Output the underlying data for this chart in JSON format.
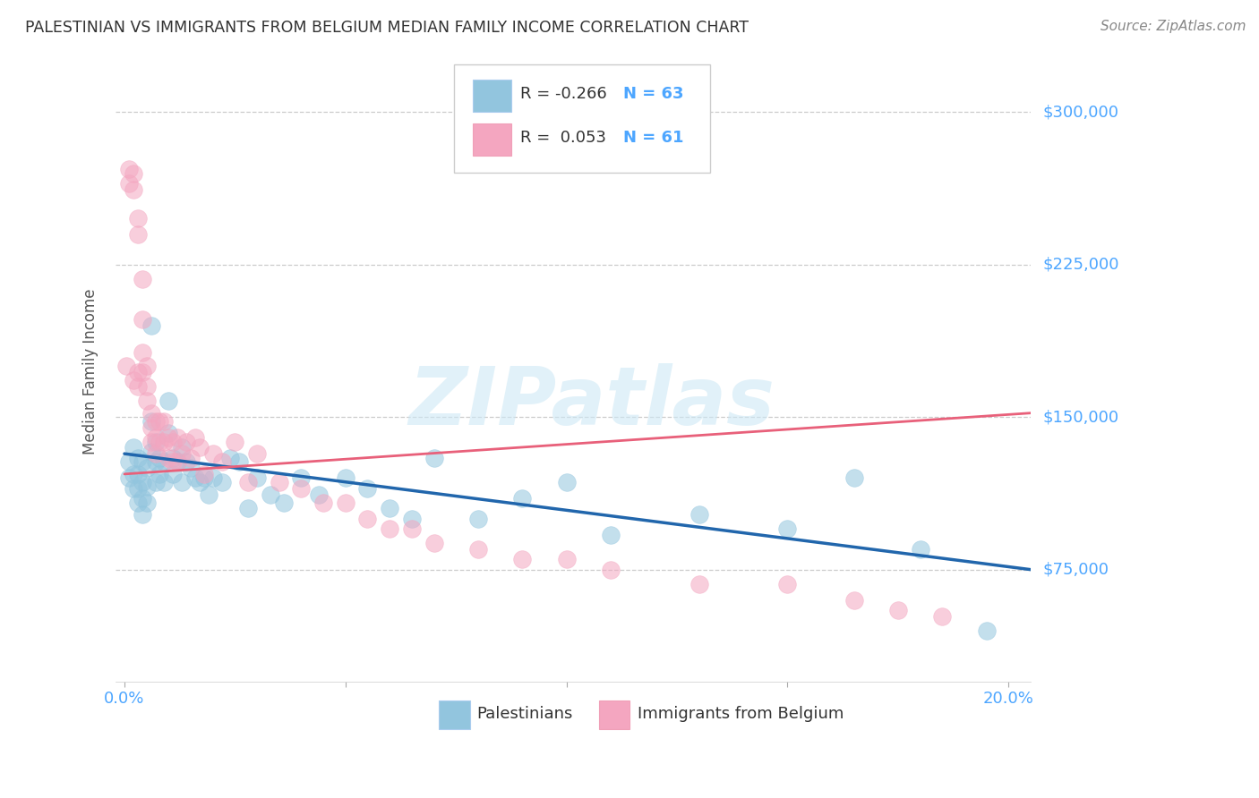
{
  "title": "PALESTINIAN VS IMMIGRANTS FROM BELGIUM MEDIAN FAMILY INCOME CORRELATION CHART",
  "source": "Source: ZipAtlas.com",
  "ylabel": "Median Family Income",
  "xlim": [
    -0.002,
    0.205
  ],
  "ylim": [
    20000,
    325000
  ],
  "yticks": [
    75000,
    150000,
    225000,
    300000
  ],
  "ytick_labels": [
    "$75,000",
    "$150,000",
    "$225,000",
    "$300,000"
  ],
  "xticks": [
    0.0,
    0.05,
    0.1,
    0.15,
    0.2
  ],
  "blue_color": "#92c5de",
  "pink_color": "#f4a6c0",
  "blue_line_color": "#2166ac",
  "pink_line_color": "#d6604d",
  "legend_R_blue": "R = -0.266",
  "legend_N_blue": "N = 63",
  "legend_R_pink": "R =  0.053",
  "legend_N_pink": "N = 61",
  "legend_label_blue": "Palestinians",
  "legend_label_pink": "Immigrants from Belgium",
  "watermark": "ZIPatlas",
  "blue_scatter_x": [
    0.001,
    0.001,
    0.002,
    0.002,
    0.002,
    0.003,
    0.003,
    0.003,
    0.003,
    0.004,
    0.004,
    0.004,
    0.004,
    0.005,
    0.005,
    0.005,
    0.006,
    0.006,
    0.006,
    0.007,
    0.007,
    0.007,
    0.008,
    0.008,
    0.009,
    0.009,
    0.01,
    0.01,
    0.011,
    0.011,
    0.012,
    0.013,
    0.013,
    0.014,
    0.015,
    0.016,
    0.017,
    0.018,
    0.019,
    0.02,
    0.022,
    0.024,
    0.026,
    0.028,
    0.03,
    0.033,
    0.036,
    0.04,
    0.044,
    0.05,
    0.055,
    0.06,
    0.065,
    0.07,
    0.08,
    0.09,
    0.1,
    0.11,
    0.13,
    0.15,
    0.165,
    0.18,
    0.195
  ],
  "blue_scatter_y": [
    128000,
    120000,
    135000,
    122000,
    115000,
    130000,
    122000,
    115000,
    108000,
    128000,
    118000,
    110000,
    102000,
    125000,
    116000,
    108000,
    195000,
    148000,
    133000,
    138000,
    128000,
    118000,
    130000,
    122000,
    128000,
    118000,
    158000,
    142000,
    130000,
    122000,
    128000,
    135000,
    118000,
    128000,
    125000,
    120000,
    118000,
    120000,
    112000,
    120000,
    118000,
    130000,
    128000,
    105000,
    120000,
    112000,
    108000,
    120000,
    112000,
    120000,
    115000,
    105000,
    100000,
    130000,
    100000,
    110000,
    118000,
    92000,
    102000,
    95000,
    120000,
    85000,
    45000
  ],
  "pink_scatter_x": [
    0.0005,
    0.001,
    0.001,
    0.002,
    0.002,
    0.002,
    0.003,
    0.003,
    0.003,
    0.003,
    0.004,
    0.004,
    0.004,
    0.004,
    0.005,
    0.005,
    0.005,
    0.006,
    0.006,
    0.006,
    0.007,
    0.007,
    0.007,
    0.008,
    0.008,
    0.009,
    0.009,
    0.01,
    0.01,
    0.011,
    0.011,
    0.012,
    0.012,
    0.013,
    0.014,
    0.015,
    0.016,
    0.017,
    0.018,
    0.02,
    0.022,
    0.025,
    0.028,
    0.03,
    0.035,
    0.04,
    0.045,
    0.05,
    0.055,
    0.06,
    0.065,
    0.07,
    0.08,
    0.09,
    0.1,
    0.11,
    0.13,
    0.15,
    0.165,
    0.175,
    0.185
  ],
  "pink_scatter_y": [
    175000,
    272000,
    265000,
    270000,
    262000,
    168000,
    248000,
    240000,
    172000,
    165000,
    218000,
    198000,
    182000,
    172000,
    175000,
    165000,
    158000,
    152000,
    145000,
    138000,
    148000,
    140000,
    132000,
    148000,
    138000,
    148000,
    138000,
    140000,
    130000,
    138000,
    128000,
    140000,
    128000,
    132000,
    138000,
    130000,
    140000,
    135000,
    122000,
    132000,
    128000,
    138000,
    118000,
    132000,
    118000,
    115000,
    108000,
    108000,
    100000,
    95000,
    95000,
    88000,
    85000,
    80000,
    80000,
    75000,
    68000,
    68000,
    60000,
    55000,
    52000
  ],
  "blue_line_x0": 0.0,
  "blue_line_x1": 0.205,
  "blue_line_y0": 132000,
  "blue_line_y1": 75000,
  "pink_line_x0": 0.0,
  "pink_line_x1": 0.205,
  "pink_line_y0": 122000,
  "pink_line_y1": 152000,
  "background_color": "#ffffff",
  "grid_color": "#cccccc",
  "title_color": "#333333",
  "axis_label_color": "#555555",
  "tick_label_color": "#4da6ff",
  "source_color": "#888888"
}
